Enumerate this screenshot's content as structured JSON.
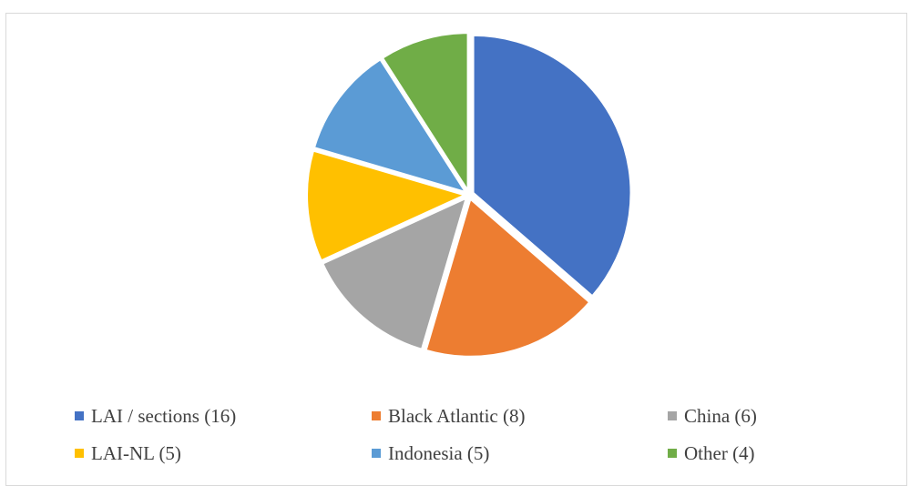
{
  "chart_data": {
    "type": "pie",
    "title": "",
    "legend_position": "bottom",
    "categories": [
      "LAI / sections",
      "Black Atlantic",
      "China",
      "LAI-NL",
      "Indonesia",
      "Other"
    ],
    "values": [
      16,
      8,
      6,
      5,
      5,
      4
    ],
    "colors": [
      "#4472C4",
      "#ED7D31",
      "#A5A5A5",
      "#FFC000",
      "#5B9BD5",
      "#70AD47"
    ],
    "legend": [
      {
        "label": "LAI / sections (16)",
        "color": "#4472C4"
      },
      {
        "label": "Black Atlantic (8)",
        "color": "#ED7D31"
      },
      {
        "label": "China (6)",
        "color": "#A5A5A5"
      },
      {
        "label": "LAI-NL (5)",
        "color": "#FFC000"
      },
      {
        "label": "Indonesia (5)",
        "color": "#5B9BD5"
      },
      {
        "label": "Other (4)",
        "color": "#70AD47"
      }
    ]
  }
}
